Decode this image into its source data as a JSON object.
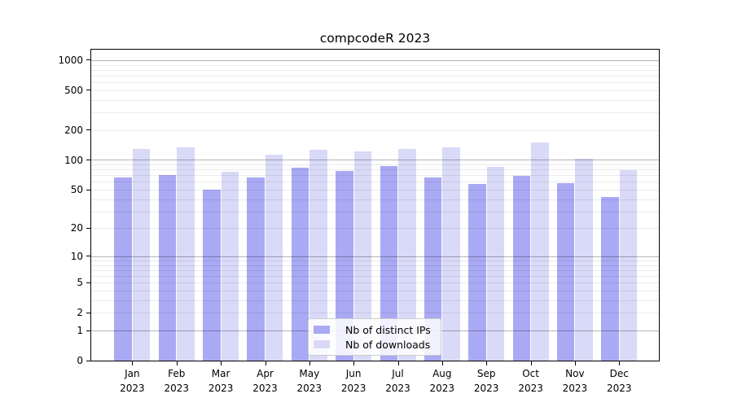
{
  "title": "compcodeR 2023",
  "chart_data": {
    "type": "bar",
    "title": "compcodeR 2023",
    "categories": [
      "Jan",
      "Feb",
      "Mar",
      "Apr",
      "May",
      "Jun",
      "Jul",
      "Aug",
      "Sep",
      "Oct",
      "Nov",
      "Dec"
    ],
    "category_year": "2023",
    "series": [
      {
        "name": "Nb of distinct IPs",
        "color": "#a9a9f4",
        "values": [
          66,
          71,
          50,
          67,
          84,
          78,
          87,
          66,
          57,
          69,
          58,
          42
        ]
      },
      {
        "name": "Nb of downloads",
        "color": "#d9d9f8",
        "values": [
          129,
          135,
          76,
          113,
          127,
          121,
          129,
          133,
          85,
          151,
          102,
          79
        ]
      }
    ],
    "xlabel": "",
    "ylabel": "",
    "y_ticks": [
      0,
      1,
      2,
      5,
      10,
      20,
      50,
      100,
      200,
      500,
      1000
    ],
    "y_scale": "log10(x+1)",
    "ylim": [
      0,
      1275
    ],
    "grid": true,
    "legend_position": "lower center"
  }
}
